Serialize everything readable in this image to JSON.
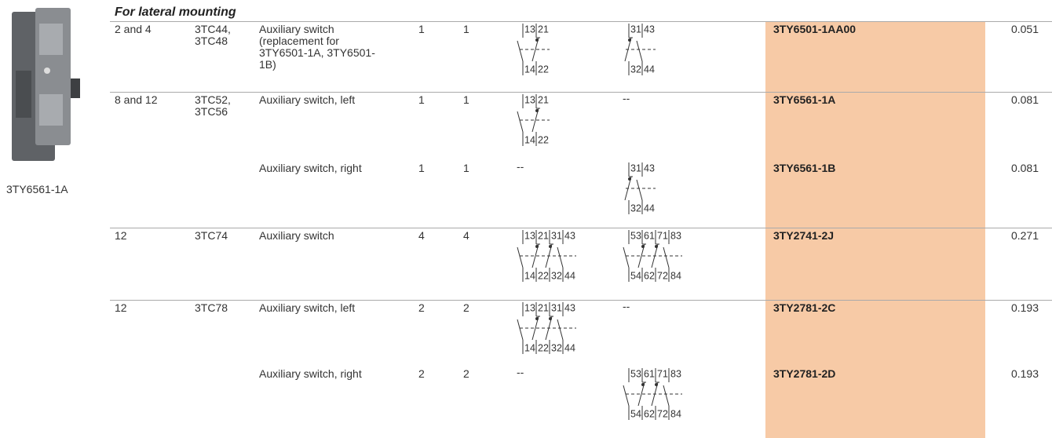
{
  "product_image": {
    "caption": "3TY6561-1A"
  },
  "section_title": "For lateral mounting",
  "rows": [
    {
      "sizes": "2 and 4",
      "contactors": "3TC44, 3TC48",
      "description": "Auxiliary switch (replacement for 3TY6501-1A, 3TY6501-1B)",
      "no": 1,
      "nc": 1,
      "diagram_a": {
        "top": [
          "13",
          "21"
        ],
        "bottom": [
          "14",
          "22"
        ]
      },
      "diagram_b": {
        "top": [
          "31",
          "43"
        ],
        "bottom": [
          "32",
          "44"
        ]
      },
      "order_no": "3TY6501-1AA00",
      "weight": 0.051
    },
    {
      "sizes": "8 and 12",
      "contactors": "3TC52, 3TC56",
      "description": "Auxiliary switch, left",
      "no": 1,
      "nc": 1,
      "diagram_a": {
        "top": [
          "13",
          "21"
        ],
        "bottom": [
          "14",
          "22"
        ]
      },
      "diagram_b": "--",
      "order_no": "3TY6561-1A",
      "weight": 0.081
    },
    {
      "description": "Auxiliary switch, right",
      "no": 1,
      "nc": 1,
      "diagram_a": "--",
      "diagram_b": {
        "top": [
          "31",
          "43"
        ],
        "bottom": [
          "32",
          "44"
        ]
      },
      "order_no": "3TY6561-1B",
      "weight": 0.081
    },
    {
      "sizes": "12",
      "contactors": "3TC74",
      "description": "Auxiliary switch",
      "no": 4,
      "nc": 4,
      "diagram_a": {
        "top": [
          "13",
          "21",
          "31",
          "43"
        ],
        "bottom": [
          "14",
          "22",
          "32",
          "44"
        ]
      },
      "diagram_b": {
        "top": [
          "53",
          "61",
          "71",
          "83"
        ],
        "bottom": [
          "54",
          "62",
          "72",
          "84"
        ]
      },
      "order_no": "3TY2741-2J",
      "weight": 0.271
    },
    {
      "sizes": "12",
      "contactors": "3TC78",
      "description": "Auxiliary switch, left",
      "no": 2,
      "nc": 2,
      "diagram_a": {
        "top": [
          "13",
          "21",
          "31",
          "43"
        ],
        "bottom": [
          "14",
          "22",
          "32",
          "44"
        ]
      },
      "diagram_b": "--",
      "order_no": "3TY2781-2C",
      "weight": 0.193
    },
    {
      "description": "Auxiliary switch, right",
      "no": 2,
      "nc": 2,
      "diagram_a": "--",
      "diagram_b": {
        "top": [
          "53",
          "61",
          "71",
          "83"
        ],
        "bottom": [
          "54",
          "62",
          "72",
          "84"
        ]
      },
      "order_no": "3TY2781-2D",
      "weight": 0.193
    }
  ]
}
